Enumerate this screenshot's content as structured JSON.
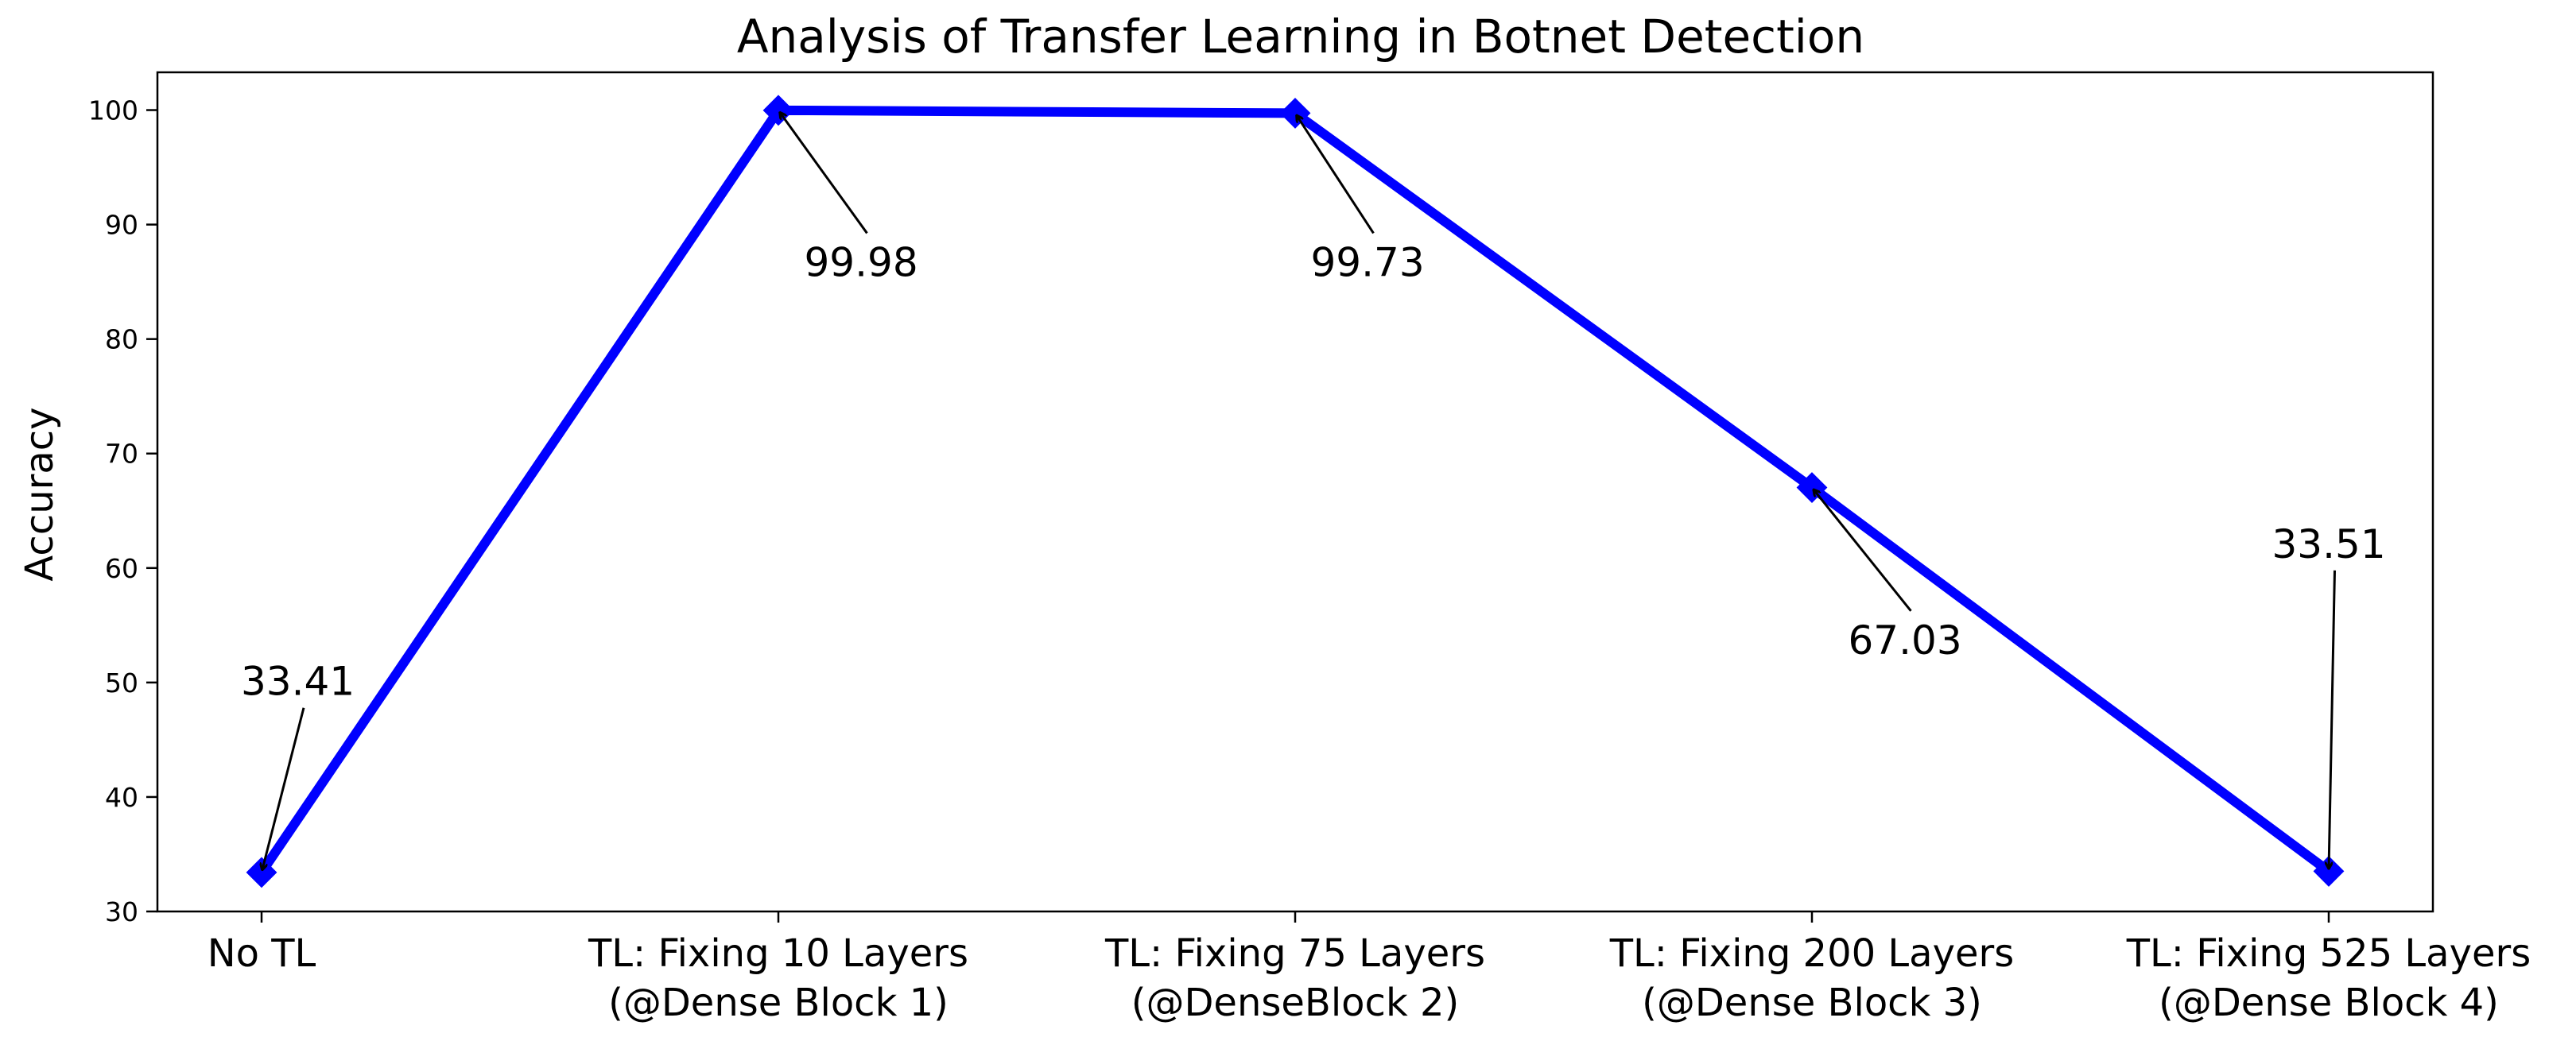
{
  "chart_data": {
    "type": "line",
    "title": "Analysis of Transfer Learning in Botnet Detection",
    "xlabel": "",
    "ylabel": "Accuracy",
    "ylim": [
      30,
      103.3
    ],
    "yticks": [
      30,
      40,
      50,
      60,
      70,
      80,
      90,
      100
    ],
    "grid": false,
    "categories": [
      [
        "No TL"
      ],
      [
        "TL: Fixing 10 Layers",
        "(@Dense Block 1)"
      ],
      [
        "TL: Fixing 75 Layers",
        "(@DenseBlock 2)"
      ],
      [
        "TL: Fixing 200 Layers",
        "(@Dense Block 3)"
      ],
      [
        "TL: Fixing 525 Layers",
        "(@Dense Block 4)"
      ]
    ],
    "series": [
      {
        "values": [
          33.41,
          99.98,
          99.73,
          67.03,
          33.51
        ],
        "color": "#0000ff",
        "marker": "diamond"
      }
    ],
    "annotations": [
      {
        "index": 0,
        "text": "33.41",
        "text_value": 48.9,
        "text_cat_offset": -0.04
      },
      {
        "index": 1,
        "text": "99.98",
        "text_value": 85.5,
        "text_cat_offset": 0.05
      },
      {
        "index": 2,
        "text": "99.73",
        "text_value": 85.5,
        "text_cat_offset": 0.03
      },
      {
        "index": 3,
        "text": "67.03",
        "text_value": 52.5,
        "text_cat_offset": 0.07
      },
      {
        "index": 4,
        "text": "33.51",
        "text_value": 60.9,
        "text_cat_offset": -0.11
      }
    ]
  }
}
